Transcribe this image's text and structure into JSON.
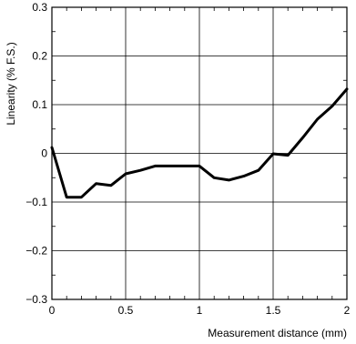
{
  "chart_data": {
    "type": "line",
    "title": "",
    "xlabel": "Measurement distance (mm)",
    "ylabel": "Linearity (% F.S.)",
    "xlim": [
      0,
      2
    ],
    "ylim": [
      -0.3,
      0.3
    ],
    "grid": true,
    "x_ticks": [
      {
        "value": 0,
        "label": "0"
      },
      {
        "value": 0.5,
        "label": "0.5"
      },
      {
        "value": 1,
        "label": "1"
      },
      {
        "value": 1.5,
        "label": "1.5"
      },
      {
        "value": 2,
        "label": "2"
      }
    ],
    "y_ticks": [
      {
        "value": 0.3,
        "label": "0.3"
      },
      {
        "value": 0.2,
        "label": "0.2"
      },
      {
        "value": 0.1,
        "label": "0.1"
      },
      {
        "value": 0,
        "label": "0"
      },
      {
        "value": -0.1,
        "label": "−0.1"
      },
      {
        "value": -0.2,
        "label": "−0.2"
      },
      {
        "value": -0.3,
        "label": "−0.3"
      }
    ],
    "x_minor_ticks": [
      0.1,
      0.2,
      0.3,
      0.4,
      0.6,
      0.7,
      0.8,
      0.9,
      1.1,
      1.2,
      1.3,
      1.4,
      1.6,
      1.7,
      1.8,
      1.9
    ],
    "y_minor_ticks": [
      0.25,
      0.15,
      0.05,
      -0.05,
      -0.15,
      -0.25
    ],
    "series": [
      {
        "color": "#000000",
        "points": [
          {
            "x": 0.0,
            "y": 0.012
          },
          {
            "x": 0.1,
            "y": -0.09
          },
          {
            "x": 0.2,
            "y": -0.09
          },
          {
            "x": 0.3,
            "y": -0.062
          },
          {
            "x": 0.4,
            "y": -0.066
          },
          {
            "x": 0.5,
            "y": -0.042
          },
          {
            "x": 0.6,
            "y": -0.035
          },
          {
            "x": 0.7,
            "y": -0.026
          },
          {
            "x": 0.8,
            "y": -0.026
          },
          {
            "x": 0.9,
            "y": -0.026
          },
          {
            "x": 1.0,
            "y": -0.026
          },
          {
            "x": 1.1,
            "y": -0.05
          },
          {
            "x": 1.2,
            "y": -0.055
          },
          {
            "x": 1.3,
            "y": -0.047
          },
          {
            "x": 1.4,
            "y": -0.035
          },
          {
            "x": 1.5,
            "y": -0.001
          },
          {
            "x": 1.6,
            "y": -0.004
          },
          {
            "x": 1.7,
            "y": 0.032
          },
          {
            "x": 1.8,
            "y": 0.07
          },
          {
            "x": 1.9,
            "y": 0.097
          },
          {
            "x": 2.0,
            "y": 0.132
          }
        ]
      }
    ]
  }
}
